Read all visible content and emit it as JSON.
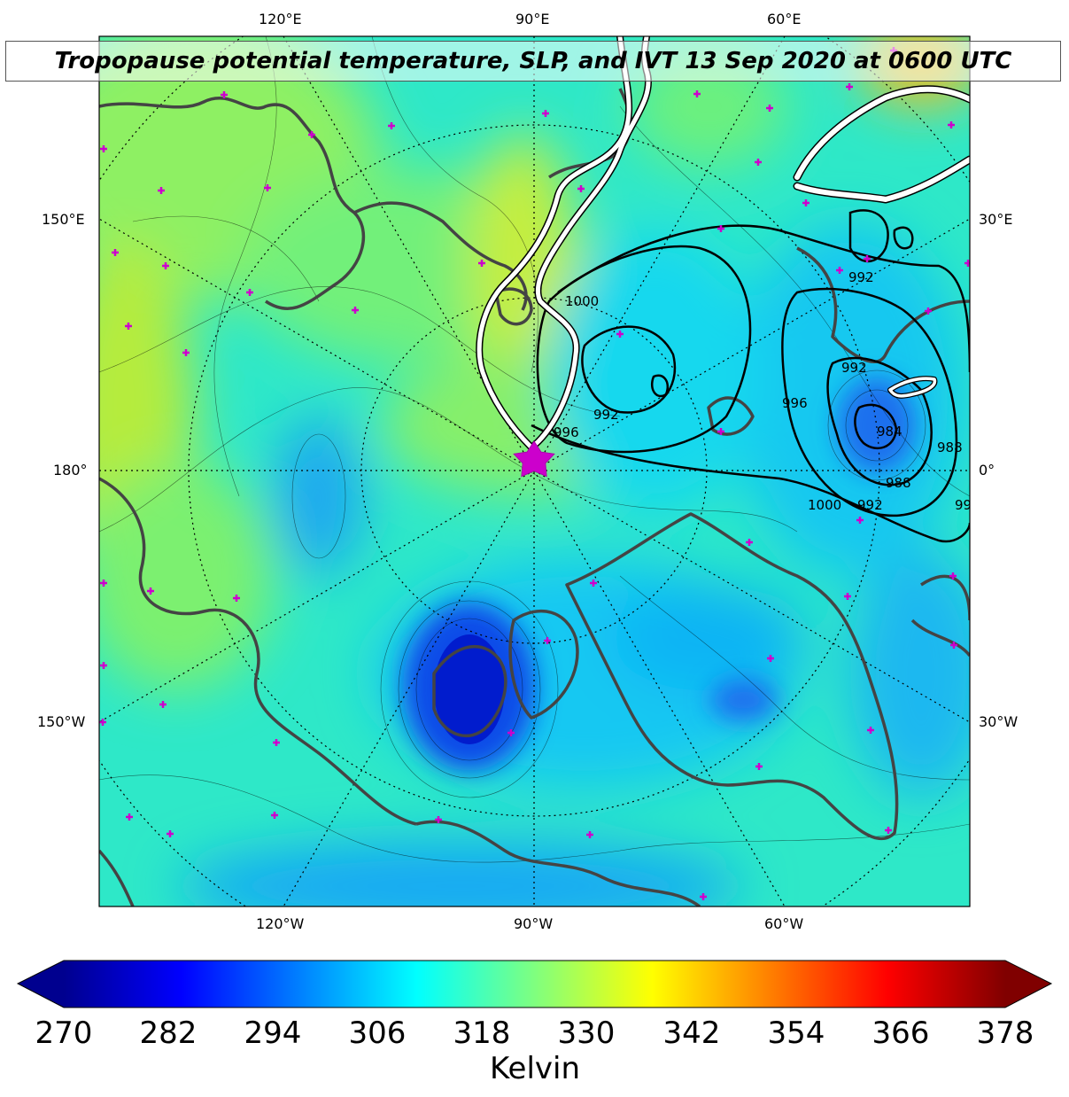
{
  "title": "Tropopause potential temperature, SLP, and IVT 13 Sep 2020 at 0600 UTC",
  "lon_labels": {
    "top": [
      "120°E",
      "90°E",
      "60°E"
    ],
    "bottom": [
      "120°W",
      "90°W",
      "60°W"
    ],
    "left": [
      "150°E",
      "180°",
      "150°W"
    ],
    "right": [
      "30°E",
      "0°",
      "30°W"
    ]
  },
  "slp_contour_labels": [
    "1000",
    "992",
    "996",
    "996",
    "992",
    "984",
    "988",
    "988",
    "992",
    "1000",
    "992",
    "99"
  ],
  "colorbar": {
    "label": "Kelvin",
    "ticks": [
      "270",
      "282",
      "294",
      "306",
      "318",
      "330",
      "342",
      "354",
      "366",
      "378"
    ],
    "range": [
      270,
      378
    ],
    "colormap": "jet",
    "extend": "both"
  },
  "marker": {
    "type": "star",
    "color": "#cc00cc"
  },
  "colors": {
    "coast": "#444444",
    "slp_contour": "#000000",
    "ivt_contour": "#ffffff",
    "station_marker": "#cc00cc"
  }
}
